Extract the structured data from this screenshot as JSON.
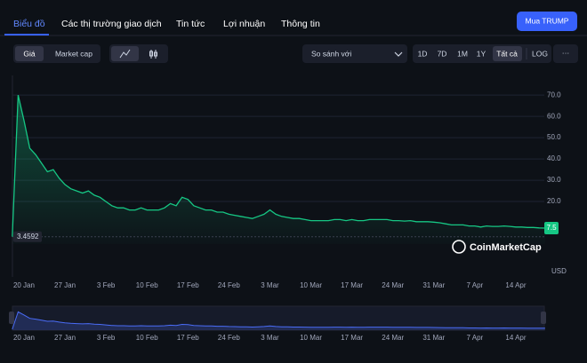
{
  "tabs": [
    "Biểu đồ",
    "Các thị trường giao dịch",
    "Tin tức",
    "Lợi nhuận",
    "Thông tin"
  ],
  "buy_button": "Mua TRUMP",
  "toggles": [
    "Giá",
    "Market cap"
  ],
  "compare": "So sánh với",
  "ranges": [
    "1D",
    "7D",
    "1M",
    "1Y",
    "Tất cả"
  ],
  "log": "LOG",
  "more": "···",
  "chart_data": {
    "type": "line",
    "color": "#16c784",
    "x": [
      "18 Jan",
      "19 Jan",
      "20 Jan",
      "21 Jan",
      "22 Jan",
      "23 Jan",
      "24 Jan",
      "25 Jan",
      "26 Jan",
      "27 Jan",
      "28 Jan",
      "29 Jan",
      "30 Jan",
      "31 Jan",
      "1 Feb",
      "2 Feb",
      "3 Feb",
      "4 Feb",
      "5 Feb",
      "6 Feb",
      "7 Feb",
      "8 Feb",
      "9 Feb",
      "10 Feb",
      "11 Feb",
      "12 Feb",
      "13 Feb",
      "14 Feb",
      "15 Feb",
      "16 Feb",
      "17 Feb",
      "18 Feb",
      "19 Feb",
      "20 Feb",
      "21 Feb",
      "22 Feb",
      "23 Feb",
      "24 Feb",
      "25 Feb",
      "26 Feb",
      "27 Feb",
      "28 Feb",
      "1 Mar",
      "2 Mar",
      "3 Mar",
      "4 Mar",
      "5 Mar",
      "6 Mar",
      "7 Mar",
      "8 Mar",
      "9 Mar",
      "10 Mar",
      "11 Mar",
      "12 Mar",
      "13 Mar",
      "14 Mar",
      "15 Mar",
      "16 Mar",
      "17 Mar",
      "18 Mar",
      "19 Mar",
      "20 Mar",
      "21 Mar",
      "22 Mar",
      "23 Mar",
      "24 Mar",
      "25 Mar",
      "26 Mar",
      "27 Mar",
      "28 Mar",
      "29 Mar",
      "30 Mar",
      "31 Mar",
      "1 Apr",
      "2 Apr",
      "3 Apr",
      "4 Apr",
      "5 Apr",
      "6 Apr",
      "7 Apr",
      "8 Apr",
      "9 Apr",
      "10 Apr",
      "11 Apr",
      "12 Apr",
      "13 Apr",
      "14 Apr",
      "15 Apr",
      "16 Apr",
      "17 Apr",
      "18 Apr",
      "19 Apr"
    ],
    "values": [
      3.4592,
      70,
      58,
      45,
      42,
      38,
      34,
      35,
      31,
      28,
      26,
      25,
      24,
      25,
      23,
      22,
      20,
      18,
      17,
      17,
      16,
      16,
      17,
      16,
      16,
      16,
      17,
      19,
      18,
      22,
      21,
      18,
      17,
      16,
      16,
      15,
      15,
      14,
      13.5,
      13,
      12.5,
      12,
      13,
      14,
      16,
      14,
      13,
      12.5,
      12,
      12,
      11.5,
      11,
      11,
      11,
      11,
      11.5,
      11.5,
      11,
      11.5,
      11,
      11,
      11.5,
      11.5,
      11.5,
      11.5,
      11,
      11,
      10.8,
      11,
      10.5,
      10.5,
      10.5,
      10.3,
      10,
      9.5,
      9,
      9,
      9,
      8.5,
      8.5,
      8,
      8.5,
      8.3,
      8.3,
      8.5,
      8.3,
      8,
      8,
      7.8,
      7.8,
      7.6,
      7.5
    ],
    "start_label": "3.4592",
    "current_label": "7.5",
    "ylim": [
      0,
      78
    ],
    "yticks": [
      {
        "value": 20,
        "label": "20.0"
      },
      {
        "value": 30,
        "label": "30.0"
      },
      {
        "value": 40,
        "label": "40.0"
      },
      {
        "value": 50,
        "label": "50.0"
      },
      {
        "value": 60,
        "label": "60.0"
      },
      {
        "value": 70,
        "label": "70.0"
      }
    ],
    "xticks": [
      "20 Jan",
      "27 Jan",
      "3 Feb",
      "10 Feb",
      "17 Feb",
      "24 Feb",
      "3 Mar",
      "10 Mar",
      "17 Mar",
      "24 Mar",
      "31 Mar",
      "7 Apr",
      "14 Apr"
    ],
    "grid": true,
    "watermark": "CoinMarketCap",
    "unit": "USD"
  }
}
